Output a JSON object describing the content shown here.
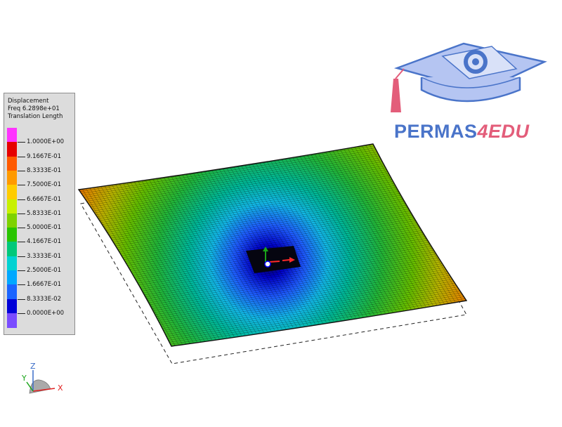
{
  "legend": {
    "title_lines": [
      "Displacement",
      "Freq 6.2898e+01",
      "Translation Length"
    ],
    "colors": [
      "#ff33ff",
      "#e60000",
      "#ff5a00",
      "#ff9a00",
      "#ffcc00",
      "#c8f000",
      "#7ed200",
      "#29c400",
      "#00c87a",
      "#00d2d2",
      "#00a8ff",
      "#1a64ff",
      "#0000d8",
      "#7a4cff"
    ],
    "ticks": [
      "1.0000E+00",
      "9.1667E-01",
      "8.3333E-01",
      "7.5000E-01",
      "6.6667E-01",
      "5.8333E-01",
      "5.0000E-01",
      "4.1667E-01",
      "3.3333E-01",
      "2.5000E-01",
      "1.6667E-01",
      "8.3333E-02",
      "0.0000E+00"
    ]
  },
  "logo": {
    "text_main": "PERMAS",
    "text_accent": "4EDU"
  },
  "triad": {
    "x_label": "X",
    "y_label": "Y",
    "z_label": "Z"
  }
}
